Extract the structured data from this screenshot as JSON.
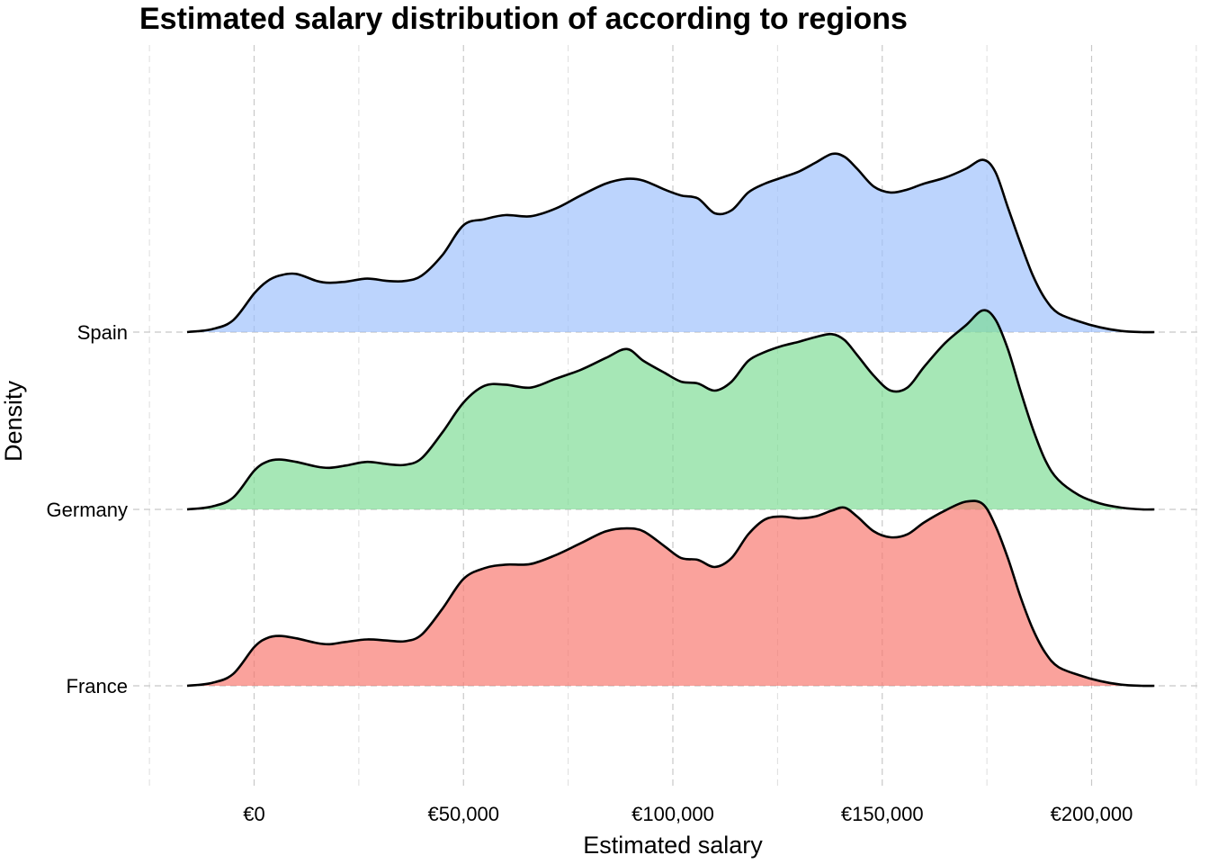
{
  "chart_data": {
    "type": "ridgeline",
    "title": "Estimated salary distribution of according to regions",
    "xlabel": "Estimated salary",
    "ylabel": "Density",
    "xlim": [
      -25000,
      225000
    ],
    "x_ticks": [
      0,
      50000,
      100000,
      150000,
      200000
    ],
    "x_tick_labels": [
      "€0",
      "€50,000",
      "€100,000",
      "€150,000",
      "€200,000"
    ],
    "categories": [
      "France",
      "Germany",
      "Spain"
    ],
    "grid": "dashed",
    "legend": "none",
    "series": [
      {
        "name": "France",
        "color": "#f8766d",
        "x": [
          -16000,
          -10000,
          -5000,
          0,
          3000,
          6000,
          10000,
          15000,
          18000,
          22000,
          27000,
          32000,
          36000,
          40000,
          45000,
          50000,
          55000,
          60000,
          66000,
          72000,
          78000,
          84000,
          89000,
          93000,
          98000,
          102000,
          106000,
          110000,
          114000,
          118000,
          122000,
          126000,
          130000,
          134000,
          138000,
          141000,
          144000,
          148000,
          152000,
          156000,
          160000,
          165000,
          170000,
          174000,
          177000,
          180000,
          183000,
          186000,
          189000,
          192000,
          197000,
          202000,
          207000,
          212000,
          215000
        ],
        "y": [
          0.0,
          0.05,
          0.2,
          0.65,
          0.8,
          0.84,
          0.8,
          0.72,
          0.7,
          0.74,
          0.78,
          0.76,
          0.75,
          0.86,
          1.3,
          1.8,
          1.98,
          2.04,
          2.05,
          2.2,
          2.4,
          2.6,
          2.65,
          2.6,
          2.35,
          2.15,
          2.12,
          2.0,
          2.15,
          2.55,
          2.8,
          2.85,
          2.82,
          2.85,
          2.95,
          3.0,
          2.85,
          2.6,
          2.5,
          2.55,
          2.75,
          2.95,
          3.1,
          3.06,
          2.7,
          2.15,
          1.5,
          0.95,
          0.55,
          0.32,
          0.18,
          0.08,
          0.02,
          0.0,
          0.0
        ]
      },
      {
        "name": "Germany",
        "color": "#7cdc93",
        "x": [
          -16000,
          -10000,
          -5000,
          0,
          3000,
          6000,
          10000,
          15000,
          18000,
          22000,
          27000,
          32000,
          36000,
          40000,
          45000,
          50000,
          55000,
          60000,
          66000,
          72000,
          78000,
          84000,
          89000,
          93000,
          98000,
          102000,
          106000,
          110000,
          114000,
          118000,
          122000,
          126000,
          130000,
          134000,
          138000,
          141000,
          144000,
          148000,
          152000,
          156000,
          160000,
          165000,
          170000,
          174000,
          177000,
          180000,
          183000,
          186000,
          189000,
          192000,
          197000,
          202000,
          207000,
          212000,
          215000
        ],
        "y": [
          0.0,
          0.05,
          0.2,
          0.65,
          0.8,
          0.84,
          0.8,
          0.72,
          0.7,
          0.74,
          0.8,
          0.76,
          0.75,
          0.86,
          1.3,
          1.8,
          2.08,
          2.1,
          2.05,
          2.2,
          2.35,
          2.55,
          2.7,
          2.5,
          2.3,
          2.15,
          2.12,
          2.0,
          2.15,
          2.5,
          2.65,
          2.75,
          2.82,
          2.9,
          2.95,
          2.85,
          2.6,
          2.25,
          2.0,
          2.05,
          2.4,
          2.8,
          3.1,
          3.35,
          3.2,
          2.7,
          2.0,
          1.35,
          0.82,
          0.5,
          0.24,
          0.1,
          0.03,
          0.0,
          0.0
        ]
      },
      {
        "name": "Spain",
        "color": "#9cbffc",
        "x": [
          -16000,
          -10000,
          -5000,
          0,
          3000,
          6000,
          10000,
          15000,
          18000,
          22000,
          27000,
          32000,
          36000,
          40000,
          45000,
          50000,
          55000,
          60000,
          66000,
          72000,
          78000,
          84000,
          89000,
          93000,
          98000,
          102000,
          106000,
          110000,
          114000,
          118000,
          122000,
          126000,
          130000,
          134000,
          138000,
          141000,
          144000,
          148000,
          152000,
          156000,
          160000,
          165000,
          170000,
          174000,
          177000,
          180000,
          183000,
          186000,
          189000,
          192000,
          197000,
          202000,
          207000,
          212000,
          215000
        ],
        "y": [
          0.0,
          0.05,
          0.2,
          0.65,
          0.85,
          0.95,
          0.98,
          0.86,
          0.83,
          0.85,
          0.9,
          0.86,
          0.86,
          0.95,
          1.3,
          1.8,
          1.9,
          1.97,
          1.95,
          2.08,
          2.3,
          2.5,
          2.58,
          2.55,
          2.4,
          2.3,
          2.25,
          2.0,
          2.05,
          2.35,
          2.5,
          2.6,
          2.7,
          2.85,
          3.0,
          2.95,
          2.75,
          2.45,
          2.35,
          2.4,
          2.5,
          2.6,
          2.75,
          2.9,
          2.7,
          2.1,
          1.5,
          0.95,
          0.55,
          0.32,
          0.18,
          0.08,
          0.02,
          0.0,
          0.0
        ]
      }
    ]
  }
}
